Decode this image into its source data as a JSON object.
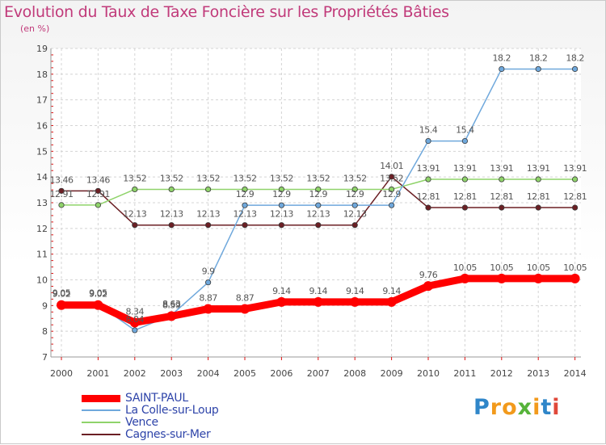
{
  "chart_data": {
    "type": "line",
    "title": "Evolution du Taux de Taxe Foncière sur les Propriétés Bâties",
    "ylabel": "(en %)",
    "xlabel": "",
    "x": [
      "2000",
      "2001",
      "2002",
      "2003",
      "2004",
      "2005",
      "2006",
      "2007",
      "2008",
      "2009",
      "2010",
      "2011",
      "2012",
      "2013",
      "2014"
    ],
    "ylim": [
      7,
      19
    ],
    "yticks": [
      "7",
      "8",
      "9",
      "10",
      "11",
      "12",
      "13",
      "14",
      "15",
      "16",
      "17",
      "18",
      "19"
    ],
    "grid": true,
    "series": [
      {
        "name": "SAINT-PAUL",
        "color": "#ff0000",
        "values": [
          9.02,
          9.02,
          8.34,
          8.59,
          8.87,
          8.87,
          9.14,
          9.14,
          9.14,
          9.14,
          9.76,
          10.05,
          10.05,
          10.05,
          10.05
        ],
        "labels": [
          "9.02",
          "9.02",
          "8.34",
          "8.59",
          "8.87",
          "8.87",
          "9.14",
          "9.14",
          "9.14",
          "9.14",
          "9.76",
          "10.05",
          "10.05",
          "10.05",
          "10.05"
        ]
      },
      {
        "name": "La Colle-sur-Loup",
        "color": "#6fa8dc",
        "values": [
          9.05,
          9.05,
          8.04,
          8.63,
          9.9,
          12.9,
          12.9,
          12.9,
          12.9,
          12.9,
          15.4,
          15.4,
          18.2,
          18.2,
          18.2
        ],
        "labels": [
          "9.05",
          "9.05",
          "8.04",
          "8.63",
          "9.9",
          "12.9",
          "12.9",
          "12.9",
          "12.9",
          "12.9",
          "15.4",
          "15.4",
          "18.2",
          "18.2",
          "18.2"
        ]
      },
      {
        "name": "Vence",
        "color": "#8fd36a",
        "values": [
          12.91,
          12.91,
          13.52,
          13.52,
          13.52,
          13.52,
          13.52,
          13.52,
          13.52,
          13.52,
          13.91,
          13.91,
          13.91,
          13.91,
          13.91
        ],
        "labels": [
          "12.91",
          "12.91",
          "13.52",
          "13.52",
          "13.52",
          "13.52",
          "13.52",
          "13.52",
          "13.52",
          "13.52",
          "13.91",
          "13.91",
          "13.91",
          "13.91",
          "13.91"
        ]
      },
      {
        "name": "Cagnes-sur-Mer",
        "color": "#6b1f24",
        "values": [
          13.46,
          13.46,
          12.13,
          12.13,
          12.13,
          12.13,
          12.13,
          12.13,
          12.13,
          14.01,
          12.81,
          12.81,
          12.81,
          12.81,
          12.81
        ],
        "labels": [
          "13.46",
          "13.46",
          "12.13",
          "12.13",
          "12.13",
          "12.13",
          "12.13",
          "12.13",
          "12.13",
          "14.01",
          "12.81",
          "12.81",
          "12.81",
          "12.81",
          "12.81"
        ]
      }
    ]
  },
  "logo": {
    "p": "P",
    "ro": "ro",
    "x": "x",
    "i1": "i",
    "t": "t",
    "i2": "i"
  }
}
